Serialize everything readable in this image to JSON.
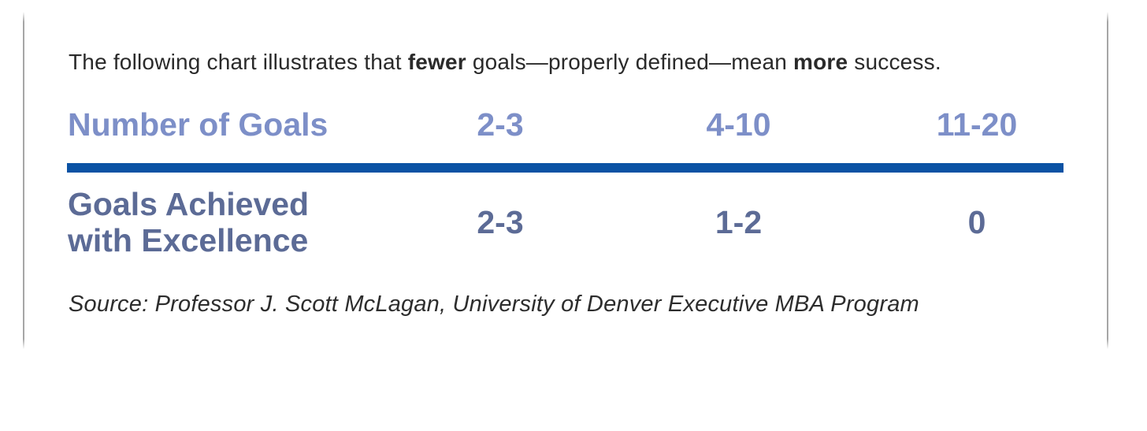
{
  "intro": {
    "segments": [
      {
        "text": "The following chart illustrates that ",
        "bold": false
      },
      {
        "text": "fewer",
        "bold": true
      },
      {
        "text": " goals—properly defined—mean ",
        "bold": false
      },
      {
        "text": "more",
        "bold": true
      },
      {
        "text": " success.",
        "bold": false
      }
    ]
  },
  "table": {
    "header": {
      "label": "Number of Goals",
      "cols": [
        "2-3",
        "4-10",
        "11-20"
      ]
    },
    "row": {
      "label": "Goals Achieved with Excellence",
      "label_lines": [
        "Goals Achieved",
        "with Excellence"
      ],
      "values": [
        "2-3",
        "1-2",
        "0"
      ]
    }
  },
  "source": {
    "text": "Source: Professor J. Scott McLagan, University of Denver Executive MBA Program"
  },
  "colors": {
    "header_text": "#7d8fc8",
    "row_text": "#5c6b96",
    "divider_rule": "#0b52a4",
    "body_text": "#2a2a2a",
    "page_edge": "#969696"
  },
  "chart_data": {
    "type": "table",
    "title": "The following chart illustrates that fewer goals—properly defined—mean more success.",
    "columns": [
      "Number of Goals",
      "2-3",
      "4-10",
      "11-20"
    ],
    "rows": [
      [
        "Goals Achieved with Excellence",
        "2-3",
        "1-2",
        "0"
      ]
    ],
    "source": "Source: Professor J. Scott McLagan, University of Denver Executive MBA Program"
  }
}
